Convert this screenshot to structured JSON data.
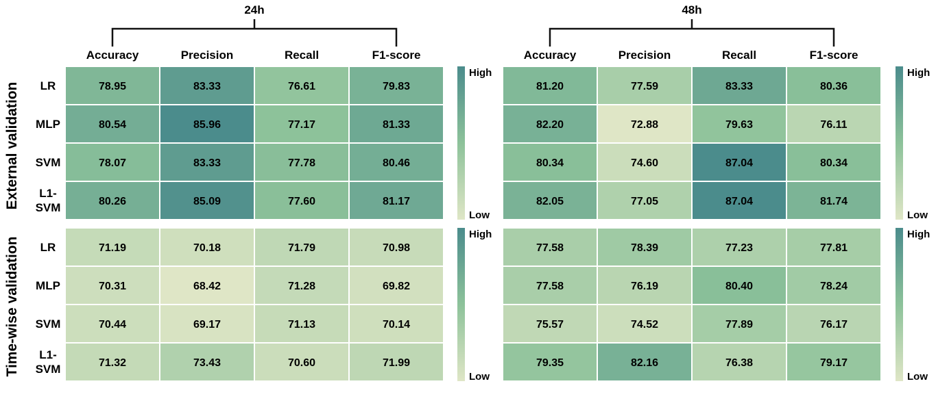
{
  "colors": {
    "low": "#dfe6c6",
    "mid": "#8dc29a",
    "high": "#4b8c8c",
    "cell_border": "#ffffff",
    "bracket": "#111111"
  },
  "chart_data": {
    "type": "heatmap",
    "metrics": [
      "Accuracy",
      "Precision",
      "Recall",
      "F1-score"
    ],
    "models": [
      "LR",
      "MLP",
      "SVM",
      "L1-SVM"
    ],
    "sections": [
      "External validation",
      "Time-wise validation"
    ],
    "colorbar": {
      "high_label": "High",
      "low_label": "Low"
    },
    "panels": [
      {
        "time": "24h",
        "external": [
          [
            78.95,
            83.33,
            76.61,
            79.83
          ],
          [
            80.54,
            85.96,
            77.17,
            81.33
          ],
          [
            78.07,
            83.33,
            77.78,
            80.46
          ],
          [
            80.26,
            85.09,
            77.6,
            81.17
          ]
        ],
        "timewise": [
          [
            71.19,
            70.18,
            71.79,
            70.98
          ],
          [
            70.31,
            68.42,
            71.28,
            69.82
          ],
          [
            70.44,
            69.17,
            71.13,
            70.14
          ],
          [
            71.32,
            73.43,
            70.6,
            71.99
          ]
        ]
      },
      {
        "time": "48h",
        "external": [
          [
            81.2,
            77.59,
            83.33,
            80.36
          ],
          [
            82.2,
            72.88,
            79.63,
            76.11
          ],
          [
            80.34,
            74.6,
            87.04,
            80.34
          ],
          [
            82.05,
            77.05,
            87.04,
            81.74
          ]
        ],
        "timewise": [
          [
            77.58,
            78.39,
            77.23,
            77.81
          ],
          [
            77.58,
            76.19,
            80.4,
            78.24
          ],
          [
            75.57,
            74.52,
            77.89,
            76.17
          ],
          [
            79.35,
            82.16,
            76.38,
            79.17
          ]
        ]
      }
    ]
  }
}
